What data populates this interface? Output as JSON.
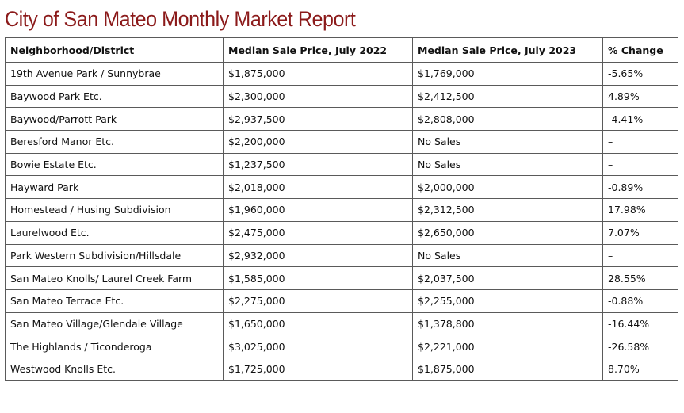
{
  "page": {
    "title": "City of San Mateo Monthly Market Report"
  },
  "colors": {
    "title": "#8b1a1a",
    "border": "#5a5a5a",
    "text": "#111111"
  },
  "chart_data": {
    "type": "table",
    "columns": [
      "Neighborhood/District",
      "Median Sale Price, July 2022",
      "Median Sale Price, July 2023",
      "% Change"
    ],
    "rows": [
      [
        "19th Avenue Park / Sunnybrae",
        "$1,875,000",
        "$1,769,000",
        "-5.65%"
      ],
      [
        "Baywood Park Etc.",
        "$2,300,000",
        "$2,412,500",
        "4.89%"
      ],
      [
        "Baywood/Parrott Park",
        "$2,937,500",
        "$2,808,000",
        "-4.41%"
      ],
      [
        "Beresford Manor Etc.",
        "$2,200,000",
        "No Sales",
        "–"
      ],
      [
        "Bowie Estate Etc.",
        "$1,237,500",
        "No Sales",
        "–"
      ],
      [
        "Hayward Park",
        "$2,018,000",
        "$2,000,000",
        "-0.89%"
      ],
      [
        "Homestead / Husing Subdivision",
        "$1,960,000",
        "$2,312,500",
        "17.98%"
      ],
      [
        "Laurelwood Etc.",
        "$2,475,000",
        "$2,650,000",
        "7.07%"
      ],
      [
        "Park Western Subdivision/Hillsdale",
        "$2,932,000",
        "No Sales",
        "–"
      ],
      [
        "San Mateo Knolls/ Laurel Creek Farm",
        "$1,585,000",
        "$2,037,500",
        "28.55%"
      ],
      [
        "San Mateo Terrace Etc.",
        "$2,275,000",
        "$2,255,000",
        "-0.88%"
      ],
      [
        "San Mateo Village/Glendale Village",
        "$1,650,000",
        "$1,378,800",
        "-16.44%"
      ],
      [
        "The Highlands / Ticonderoga",
        "$3,025,000",
        "$2,221,000",
        "-26.58%"
      ],
      [
        "Westwood Knolls Etc.",
        "$1,725,000",
        "$1,875,000",
        "8.70%"
      ]
    ]
  }
}
